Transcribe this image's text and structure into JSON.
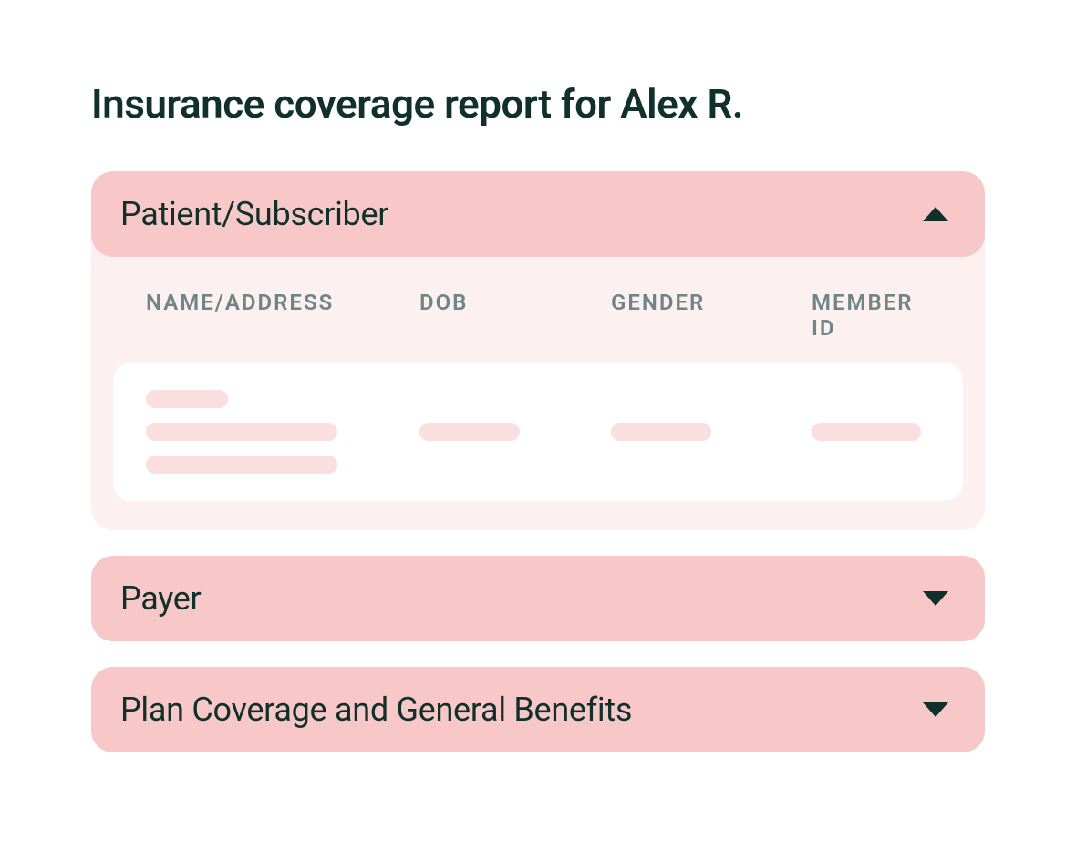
{
  "title": "Insurance coverage report for Alex R.",
  "colors": {
    "card_bg": "#ffffff",
    "text_dark": "#10312b",
    "header_muted": "#6f8682",
    "section_header_bg": "#f8c8c8",
    "section_body_bg": "#fdf0f0",
    "placeholder_bg": "#fbdede",
    "row_bg": "#ffffff"
  },
  "sections": [
    {
      "id": "patient-subscriber",
      "title": "Patient/Subscriber",
      "expanded": true,
      "columns": [
        "NAME/ADDRESS",
        "DOB",
        "GENDER",
        "MEMBER ID"
      ],
      "rows": [
        {
          "name_address_lines": 3,
          "dob_placeholder": true,
          "gender_placeholder": true,
          "member_id_placeholder": true
        }
      ]
    },
    {
      "id": "payer",
      "title": "Payer",
      "expanded": false
    },
    {
      "id": "plan-coverage",
      "title": "Plan Coverage and General Benefits",
      "expanded": false
    }
  ]
}
